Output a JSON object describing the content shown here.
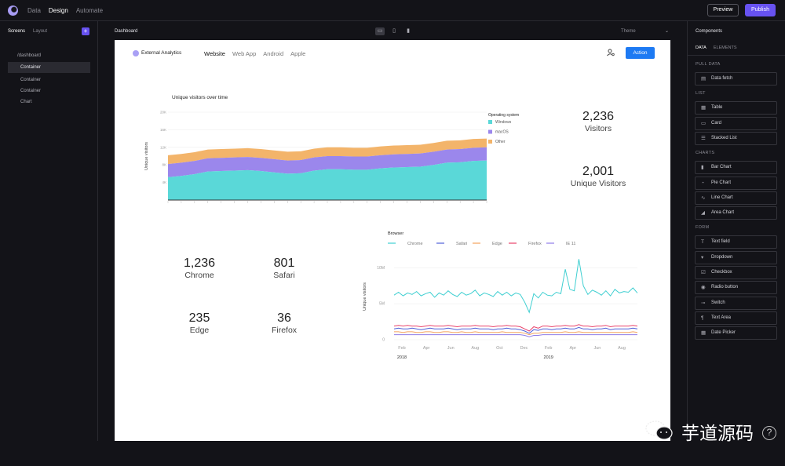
{
  "topbar": {
    "nav": [
      "Data",
      "Design",
      "Automate"
    ],
    "active_nav": "Design",
    "preview_label": "Preview",
    "publish_label": "Publish"
  },
  "left_panel": {
    "tabs": [
      "Screens",
      "Layout"
    ],
    "add_label": "+",
    "route": "/dashboard",
    "items": [
      "Container",
      "Container",
      "Container",
      "Chart"
    ]
  },
  "center": {
    "screen_name": "Dashboard",
    "theme_label": "Theme"
  },
  "app": {
    "name": "External Analytics",
    "nav": [
      "Website",
      "Web App",
      "Android",
      "Apple"
    ],
    "action_label": "Action"
  },
  "stats_top": [
    {
      "value": "2,236",
      "label": "Visitors"
    },
    {
      "value": "2,001",
      "label": "Unique Visitors"
    }
  ],
  "stats_browser": [
    {
      "value": "1,236",
      "label": "Chrome"
    },
    {
      "value": "801",
      "label": "Safari"
    },
    {
      "value": "235",
      "label": "Edge"
    },
    {
      "value": "36",
      "label": "Firefox"
    }
  ],
  "chart_data": [
    {
      "type": "area",
      "title": "Unique visitors over time",
      "ylabel": "Unique visitors",
      "legend_title": "Operating system",
      "legend_position": "right",
      "yticks": [
        "20K",
        "16K",
        "12K",
        "8K",
        "4K"
      ],
      "ylim": [
        0,
        20000
      ],
      "x": [
        0,
        1,
        2,
        3,
        4,
        5,
        6,
        7,
        8,
        9,
        10,
        11,
        12,
        13,
        14,
        15,
        16,
        17,
        18,
        19,
        20,
        21,
        22,
        23,
        24
      ],
      "series": [
        {
          "name": "Windows",
          "color": "#5ad8d8",
          "values": [
            5200,
            5500,
            5900,
            6500,
            6600,
            6700,
            6800,
            6600,
            6300,
            6000,
            6100,
            6700,
            7000,
            7000,
            6900,
            6900,
            7200,
            7400,
            7500,
            7600,
            8000,
            8500,
            8600,
            8900,
            9000
          ]
        },
        {
          "name": "macOS",
          "color": "#9b87ec",
          "values": [
            3000,
            3000,
            3000,
            3000,
            3000,
            3000,
            3000,
            3000,
            3000,
            3000,
            3000,
            3000,
            3000,
            3000,
            3000,
            3000,
            3000,
            3000,
            3000,
            3000,
            3000,
            3000,
            3000,
            3000,
            3000
          ]
        },
        {
          "name": "Other",
          "color": "#f3b46a",
          "values": [
            2000,
            2000,
            2000,
            2000,
            2000,
            2000,
            2000,
            2000,
            2000,
            2000,
            2000,
            2000,
            2000,
            2000,
            2000,
            2000,
            2000,
            2000,
            2000,
            2000,
            2000,
            2000,
            2000,
            2000,
            2000
          ]
        }
      ],
      "grid": true
    },
    {
      "type": "line",
      "legend_title": "Browser",
      "legend_position": "top",
      "ylabel": "Unique visitors",
      "yticks": [
        "10M",
        "5M",
        "0"
      ],
      "ylim": [
        0,
        12000000
      ],
      "xticks": [
        "Feb",
        "Apr",
        "Jun",
        "Aug",
        "Oct",
        "Dec",
        "Feb",
        "Apr",
        "Jun",
        "Aug"
      ],
      "year_labels": [
        "2018",
        "2019"
      ],
      "series": [
        {
          "name": "Chrome",
          "color": "#3fcfd1",
          "values": [
            6200000,
            6600000,
            6100000,
            6500000,
            6300000,
            6700000,
            6100000,
            6400000,
            6600000,
            5900000,
            6500000,
            6200000,
            6800000,
            6300000,
            6000000,
            6600000,
            6200000,
            6400000,
            6900000,
            6100000,
            6500000,
            6300000,
            6000000,
            6700000,
            6200000,
            6600000,
            6100000,
            6500000,
            6300000,
            5200000,
            3800000,
            6400000,
            5800000,
            6600000,
            6200000,
            6100000,
            6600000,
            6400000,
            9800000,
            7000000,
            6800000,
            11200000,
            7500000,
            6300000,
            6900000,
            6600000,
            6200000,
            6800000,
            6100000,
            7000000,
            6500000,
            6700000,
            6600000,
            7200000,
            6500000
          ]
        },
        {
          "name": "Safari",
          "color": "#5060d8",
          "values": [
            1500000,
            1600000,
            1500000,
            1500000,
            1600000,
            1500000,
            1400000,
            1500000,
            1600000,
            1500000,
            1500000,
            1500000,
            1600000,
            1500000,
            1400000,
            1500000,
            1500000,
            1500000,
            1600000,
            1500000,
            1500000,
            1500000,
            1400000,
            1500000,
            1500000,
            1600000,
            1500000,
            1500000,
            1400000,
            1200000,
            900000,
            1400000,
            1300000,
            1500000,
            1500000,
            1400000,
            1500000,
            1500000,
            1600000,
            1500000,
            1500000,
            1700000,
            1500000,
            1500000,
            1400000,
            1500000,
            1500000,
            1600000,
            1400000,
            1500000,
            1500000,
            1500000,
            1500000,
            1600000,
            1500000
          ]
        },
        {
          "name": "Edge",
          "color": "#f3a25c",
          "values": [
            1100000,
            1100000,
            1000000,
            1100000,
            1100000,
            1000000,
            1000000,
            1100000,
            1100000,
            1000000,
            1000000,
            1100000,
            1100000,
            1000000,
            1000000,
            1100000,
            1000000,
            1000000,
            1100000,
            1000000,
            1000000,
            1000000,
            1000000,
            1000000,
            1100000,
            1000000,
            1000000,
            1000000,
            1000000,
            900000,
            700000,
            900000,
            900000,
            1000000,
            1000000,
            1000000,
            1000000,
            1000000,
            1100000,
            1000000,
            1000000,
            1100000,
            1000000,
            1000000,
            1000000,
            1000000,
            1000000,
            1000000,
            1000000,
            1000000,
            1000000,
            1000000,
            1000000,
            1100000,
            1000000
          ]
        },
        {
          "name": "Firefox",
          "color": "#e9436a",
          "values": [
            1900000,
            2000000,
            1900000,
            2000000,
            1900000,
            1900000,
            1800000,
            1900000,
            2000000,
            1900000,
            1900000,
            1900000,
            2000000,
            1900000,
            1800000,
            1900000,
            1900000,
            1900000,
            2000000,
            1900000,
            1900000,
            1900000,
            1800000,
            1900000,
            1900000,
            2000000,
            1900000,
            1900000,
            1800000,
            1500000,
            1200000,
            1800000,
            1600000,
            1900000,
            1900000,
            1800000,
            1900000,
            1900000,
            2000000,
            1900000,
            1900000,
            2100000,
            1900000,
            1900000,
            1800000,
            1900000,
            1900000,
            2000000,
            1800000,
            1900000,
            1900000,
            1900000,
            1900000,
            2000000,
            1900000
          ]
        },
        {
          "name": "IE 11",
          "color": "#8f7ce8",
          "values": [
            700000,
            700000,
            700000,
            700000,
            700000,
            700000,
            700000,
            700000,
            700000,
            700000,
            700000,
            700000,
            700000,
            700000,
            700000,
            700000,
            700000,
            700000,
            700000,
            700000,
            700000,
            700000,
            700000,
            700000,
            700000,
            700000,
            700000,
            700000,
            700000,
            600000,
            400000,
            600000,
            600000,
            700000,
            700000,
            700000,
            700000,
            700000,
            700000,
            700000,
            700000,
            700000,
            700000,
            700000,
            700000,
            700000,
            700000,
            700000,
            700000,
            700000,
            700000,
            700000,
            700000,
            700000,
            700000
          ]
        }
      ],
      "grid": true
    }
  ],
  "right_panel": {
    "title": "Components",
    "tabs": [
      "DATA",
      "ELEMENTS"
    ],
    "sections": [
      {
        "label": "PULL DATA",
        "items": [
          {
            "label": "Data fetch",
            "icon": "database-icon"
          }
        ]
      },
      {
        "label": "LIST",
        "items": [
          {
            "label": "Table",
            "icon": "table-icon"
          },
          {
            "label": "Card",
            "icon": "card-icon"
          },
          {
            "label": "Stacked List",
            "icon": "list-icon"
          }
        ]
      },
      {
        "label": "CHARTS",
        "items": [
          {
            "label": "Bar Chart",
            "icon": "bar-chart-icon"
          },
          {
            "label": "Pie Chart",
            "icon": "pie-chart-icon"
          },
          {
            "label": "Line Chart",
            "icon": "line-chart-icon"
          },
          {
            "label": "Area Chart",
            "icon": "area-chart-icon"
          }
        ]
      },
      {
        "label": "FORM",
        "items": [
          {
            "label": "Text field",
            "icon": "text-field-icon"
          },
          {
            "label": "Dropdown",
            "icon": "dropdown-icon"
          },
          {
            "label": "Checkbox",
            "icon": "checkbox-icon"
          },
          {
            "label": "Radio button",
            "icon": "radio-icon"
          },
          {
            "label": "Switch",
            "icon": "switch-icon"
          },
          {
            "label": "Text Area",
            "icon": "textarea-icon"
          },
          {
            "label": "Date Picker",
            "icon": "calendar-icon"
          }
        ]
      }
    ]
  },
  "watermark": "芋道源码",
  "help_label": "?"
}
